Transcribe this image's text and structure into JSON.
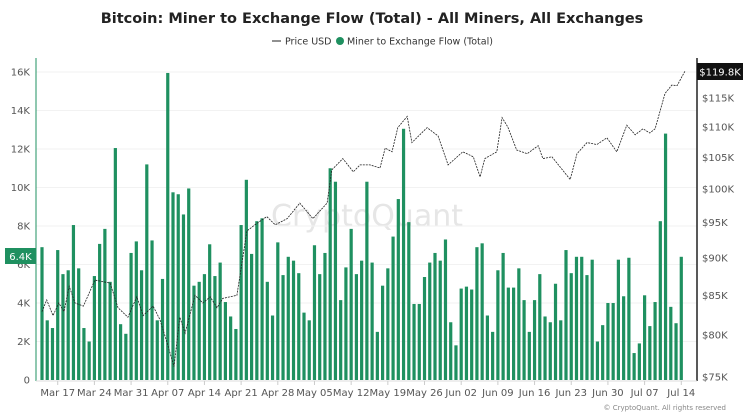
{
  "chart_data": {
    "type": "bar",
    "title": "Bitcoin: Miner to Exchange Flow (Total) - All Miners, All Exchanges",
    "legend": [
      {
        "name": "Price USD",
        "kind": "line",
        "color": "#222222"
      },
      {
        "name": "Miner to Exchange Flow (Total)",
        "kind": "bar",
        "color": "#1f9060"
      }
    ],
    "legend_position": "top-center",
    "x_tick_labels": [
      "Mar 17",
      "Mar 24",
      "Mar 31",
      "Apr 07",
      "Apr 14",
      "Apr 21",
      "Apr 28",
      "May 05",
      "May 12",
      "May 19",
      "May 26",
      "Jun 02",
      "Jun 09",
      "Jun 16",
      "Jun 23",
      "Jun 30",
      "Jul 07",
      "Jul 14"
    ],
    "x_tick_first_day_index": 3,
    "x_tick_step_days": 7,
    "left_axis": {
      "ylim": [
        0,
        16000
      ],
      "ticks": [
        0,
        2000,
        4000,
        6000,
        8000,
        10000,
        12000,
        14000,
        16000
      ],
      "tick_labels": [
        "0",
        "2K",
        "4K",
        "6K",
        "8K",
        "10K",
        "12K",
        "14K",
        "16K"
      ]
    },
    "right_axis": {
      "scale": "log",
      "ylim": [
        75000,
        119800
      ],
      "ticks": [
        75000,
        80000,
        85000,
        90000,
        95000,
        100000,
        105000,
        110000,
        115000
      ],
      "tick_labels": [
        "$75K",
        "$80K",
        "$85K",
        "$90K",
        "$95K",
        "$100K",
        "$105K",
        "$110K",
        "$115K"
      ]
    },
    "last_flow_label": "6.4K",
    "last_price_label": "$119.8K",
    "grid": true,
    "flow_values_k": [
      6.9,
      3.1,
      2.7,
      6.75,
      5.5,
      5.7,
      8.05,
      5.8,
      2.7,
      2.0,
      5.4,
      7.07,
      7.85,
      5.1,
      12.05,
      2.9,
      2.4,
      6.6,
      7.2,
      5.7,
      11.2,
      7.25,
      3.1,
      5.25,
      15.95,
      9.75,
      9.65,
      8.6,
      9.95,
      4.9,
      5.1,
      5.5,
      7.05,
      5.4,
      6.1,
      4.05,
      3.3,
      2.65,
      8.05,
      10.4,
      6.55,
      8.25,
      8.4,
      5.1,
      3.35,
      7.15,
      5.45,
      6.4,
      6.2,
      5.55,
      3.5,
      3.1,
      7.0,
      5.5,
      6.6,
      11.0,
      10.3,
      4.15,
      5.85,
      7.85,
      5.5,
      6.2,
      10.3,
      6.1,
      2.5,
      4.9,
      5.8,
      7.45,
      9.4,
      13.05,
      8.2,
      3.95,
      3.95,
      5.35,
      6.1,
      6.6,
      6.2,
      7.3,
      3.0,
      1.8,
      4.75,
      4.85,
      4.7,
      6.9,
      7.1,
      3.35,
      2.5,
      5.7,
      6.6,
      4.8,
      4.8,
      5.8,
      4.15,
      2.5,
      4.15,
      5.5,
      3.3,
      3.0,
      5.0,
      3.1,
      6.75,
      5.55,
      6.4,
      6.4,
      5.45,
      6.25,
      2.0,
      2.85,
      4.0,
      4.0,
      6.25,
      4.35,
      6.35,
      1.4,
      1.9,
      4.4,
      2.8,
      4.05,
      8.25,
      12.8,
      3.8,
      2.95,
      6.4
    ],
    "price_points_day_k": [
      [
        0,
        82.9
      ],
      [
        0.9,
        84.4
      ],
      [
        2.1,
        82.4
      ],
      [
        3.2,
        84.0
      ],
      [
        4.2,
        82.9
      ],
      [
        5.2,
        86.2
      ],
      [
        6.3,
        84.0
      ],
      [
        7.9,
        83.6
      ],
      [
        10.1,
        87.0
      ],
      [
        13,
        86.6
      ],
      [
        14.5,
        83.4
      ],
      [
        16.4,
        82.2
      ],
      [
        18.1,
        84.8
      ],
      [
        19.3,
        82.4
      ],
      [
        21.2,
        83.6
      ],
      [
        22.5,
        81.9
      ],
      [
        23.9,
        79.0
      ],
      [
        25.2,
        76.2
      ],
      [
        26.3,
        82.2
      ],
      [
        27.3,
        80.2
      ],
      [
        29.2,
        85.0
      ],
      [
        30.7,
        84.0
      ],
      [
        32.1,
        84.8
      ],
      [
        33.4,
        83.4
      ],
      [
        34.5,
        84.6
      ],
      [
        37.2,
        85.0
      ],
      [
        39.1,
        93.8
      ],
      [
        41,
        94.9
      ],
      [
        42.9,
        95.9
      ],
      [
        44.5,
        94.7
      ],
      [
        46.8,
        95.6
      ],
      [
        49.2,
        97.9
      ],
      [
        51.7,
        95.6
      ],
      [
        54.4,
        97.9
      ],
      [
        55.3,
        103.0
      ],
      [
        57.4,
        104.8
      ],
      [
        59.4,
        102.7
      ],
      [
        60.7,
        103.8
      ],
      [
        62.6,
        103.8
      ],
      [
        64.5,
        103.3
      ],
      [
        65.5,
        106.5
      ],
      [
        66.8,
        105.9
      ],
      [
        67.9,
        109.9
      ],
      [
        69.7,
        111.8
      ],
      [
        70.6,
        107.4
      ],
      [
        73.5,
        109.9
      ],
      [
        75.6,
        108.5
      ],
      [
        77.5,
        103.8
      ],
      [
        80.3,
        105.9
      ],
      [
        82.3,
        105.1
      ],
      [
        83.6,
        101.9
      ],
      [
        84.5,
        104.8
      ],
      [
        86.8,
        105.9
      ],
      [
        87.8,
        111.6
      ],
      [
        88.9,
        110.0
      ],
      [
        90.6,
        106.2
      ],
      [
        92.6,
        105.6
      ],
      [
        94.7,
        106.9
      ],
      [
        95.6,
        104.8
      ],
      [
        97.3,
        105.1
      ],
      [
        100.8,
        101.5
      ],
      [
        102.1,
        105.6
      ],
      [
        104,
        107.4
      ],
      [
        105.9,
        107.1
      ],
      [
        107.8,
        108.2
      ],
      [
        109.7,
        105.9
      ],
      [
        111.6,
        110.3
      ],
      [
        113.2,
        108.7
      ],
      [
        114.7,
        109.7
      ],
      [
        116,
        109.0
      ],
      [
        117,
        109.7
      ],
      [
        118.9,
        115.8
      ],
      [
        120.2,
        117.3
      ],
      [
        121.2,
        117.2
      ],
      [
        122.7,
        119.8
      ]
    ]
  },
  "watermark": "CryptoQuant",
  "copyright": "© CryptoQuant. All rights reserved"
}
